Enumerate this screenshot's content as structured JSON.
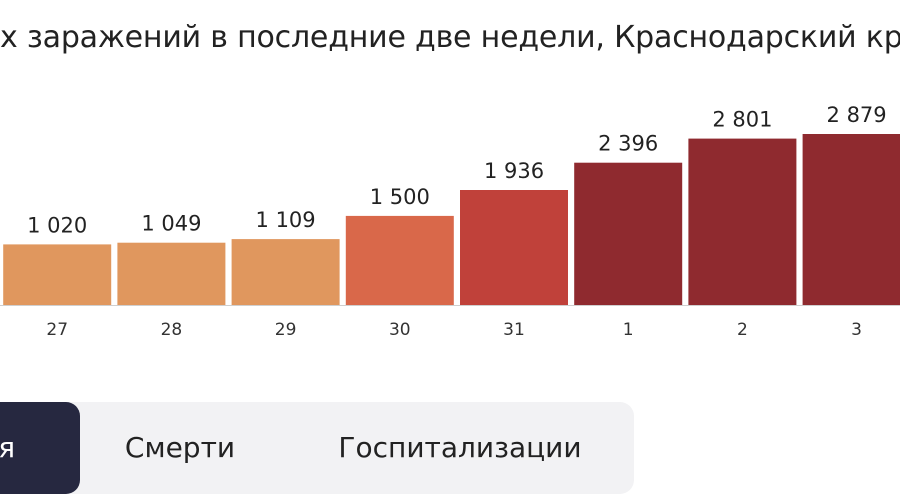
{
  "chart_data": {
    "type": "bar",
    "title": "х заражений в последние две недели, Краснодарский кр",
    "categories": [
      "",
      "27",
      "28",
      "29",
      "30",
      "31",
      "1",
      "2",
      "3"
    ],
    "category_colors": [
      "#333333",
      "#333333",
      "#333333",
      "#e53935",
      "#e53935",
      "#333333",
      "#333333",
      "#333333",
      "#333333"
    ],
    "values": [
      1020,
      1020,
      1049,
      1109,
      1500,
      1936,
      2396,
      2801,
      2879
    ],
    "value_labels": [
      "",
      "1 020",
      "1 049",
      "1 109",
      "1 500",
      "1 936",
      "2 396",
      "2 801",
      "2 879"
    ],
    "bar_colors": [
      "#e0975e",
      "#e0975e",
      "#e0975e",
      "#e0975e",
      "#d9684a",
      "#c0413a",
      "#8f2a2f",
      "#8f2a2f",
      "#8f2a2f"
    ],
    "ylim": [
      0,
      2879
    ],
    "grid": false,
    "legend": "none"
  },
  "tabs": [
    {
      "label": "ия",
      "active": true
    },
    {
      "label": "Смерти",
      "active": false
    },
    {
      "label": "Госпитализации",
      "active": false
    }
  ]
}
